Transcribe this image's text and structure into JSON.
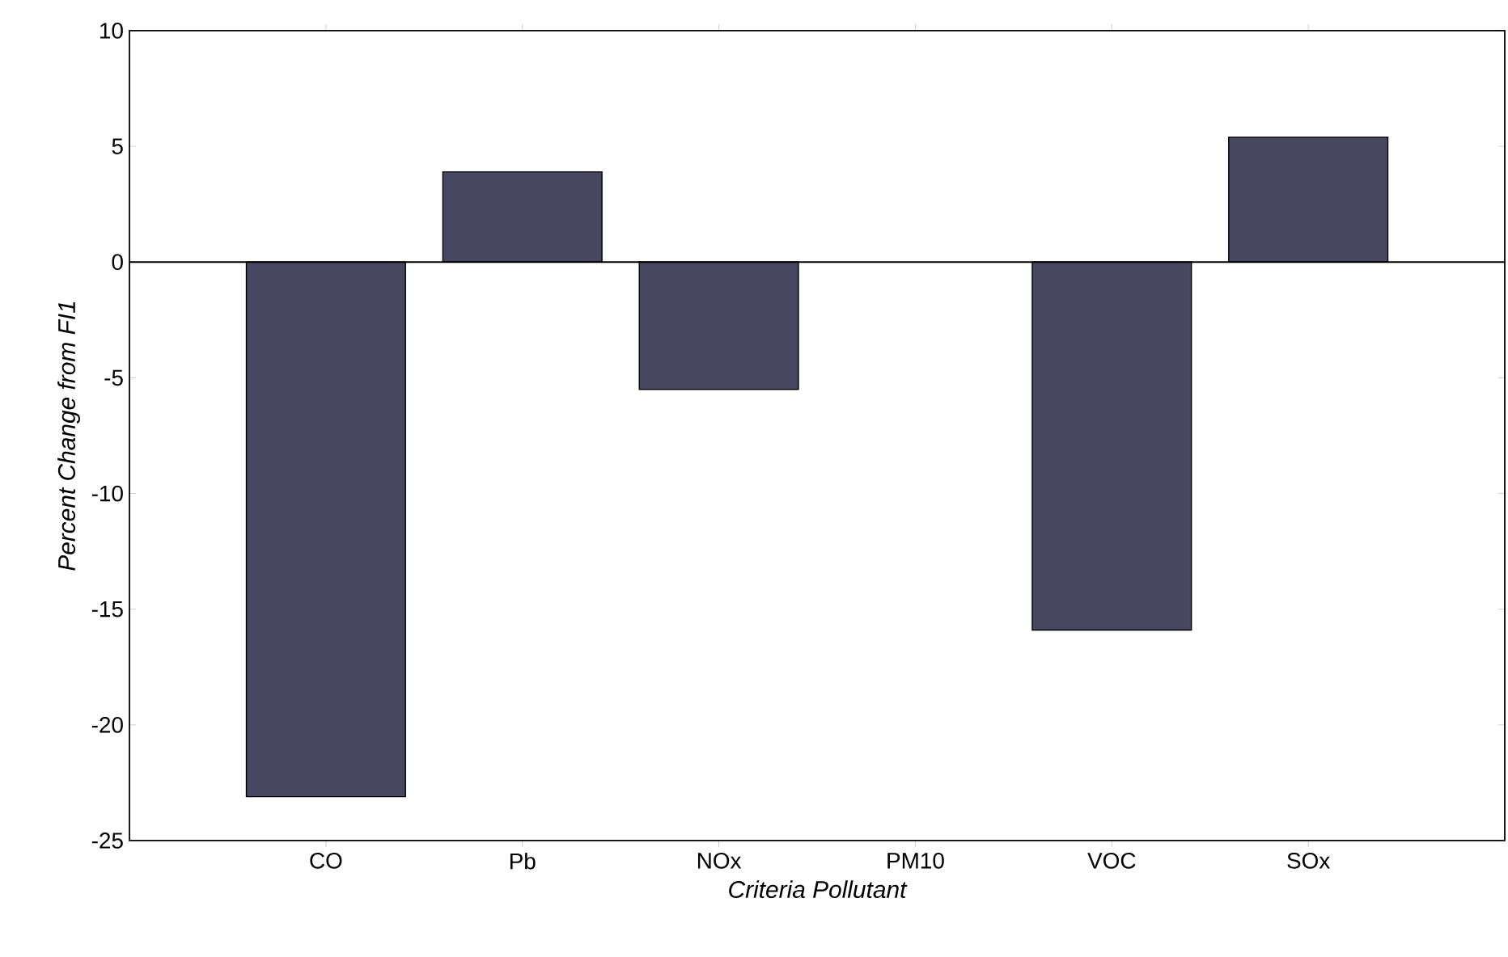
{
  "chart_data": {
    "type": "bar",
    "xlabel": "Criteria Pollutant",
    "ylabel": "Percent Change from FI1",
    "categories": [
      "CO",
      "Pb",
      "NOx",
      "PM10",
      "VOC",
      "SOx"
    ],
    "values": [
      -23.1,
      3.9,
      -5.5,
      null,
      -15.9,
      5.4
    ],
    "color": "#474762",
    "ylim": [
      -25,
      10
    ],
    "yticks": [
      -25,
      -20,
      -15,
      -10,
      -5,
      0,
      5,
      10
    ],
    "ref_lines": [
      {
        "axis": "y",
        "value": 0
      }
    ]
  }
}
